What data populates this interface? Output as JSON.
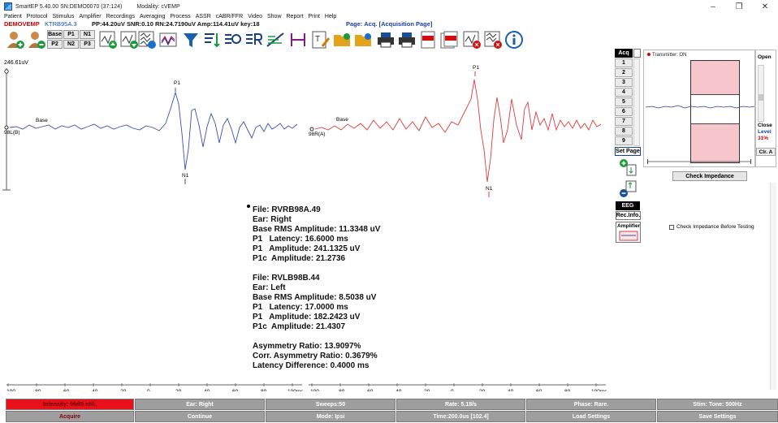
{
  "window": {
    "title": "SmartEP 5.40.00  SN:DEMO0070 (37:124)",
    "modality": "Modality: cVEMP",
    "controls": {
      "minimize": "–",
      "maximize": "❐",
      "close": "✕"
    }
  },
  "menu": [
    "Patient",
    "Protocol",
    "Stimulus",
    "Amplifier",
    "Recordings",
    "Averaging",
    "Process",
    "ASSR",
    "cABR/FFR",
    "Video",
    "Show",
    "Report",
    "Print",
    "Help"
  ],
  "status": {
    "patient_id": "DEMOVEMP",
    "test_id": "KTRB95A.3",
    "acq_stats": "PP:44.20uV SNR:0.10 RN:24.7190uV Amp:114.41uV  key:18",
    "page_label": "Page: Acq. [Acquisition Page]"
  },
  "markers": [
    "Base",
    "P1",
    "N1",
    "P2",
    "N2",
    "P3"
  ],
  "plot": {
    "amplitude_label": "246.61uV",
    "left": {
      "label": "98L(B)",
      "base": "Base",
      "p1": "P1",
      "n1": "N1",
      "color": "#3a4fb0"
    },
    "right": {
      "label": "98R(A)",
      "base": "Base",
      "p1": "P1",
      "n1": "N1",
      "color": "#e03a3a"
    },
    "x_ticks_left": [
      "-100",
      "-80",
      "-60",
      "-40",
      "-20",
      "0",
      "20",
      "40",
      "60",
      "80",
      "100ms"
    ],
    "x_ticks_right": [
      "-100",
      "-80",
      "-60",
      "-40",
      "-20",
      "0",
      "20",
      "40",
      "60",
      "80",
      "100ms"
    ]
  },
  "results": {
    "right": {
      "file": "File: RVRB98A.49",
      "ear": "Ear: Right",
      "base_rms": "Base RMS Amplitude: 11.3348 uV",
      "p1_latency": "P1   Latency: 16.6000 ms",
      "p1_amplitude": "P1   Amplitude: 241.1325 uV",
      "p1c_amplitude": "P1c  Amplitude: 21.2736"
    },
    "left": {
      "file": "File: RVLB98B.44",
      "ear": "Ear: Left",
      "base_rms": "Base RMS Amplitude: 8.5038 uV",
      "p1_latency": "P1   Latency: 17.0000 ms",
      "p1_amplitude": "P1   Amplitude: 182.2423 uV",
      "p1c_amplitude": "P1c  Amplitude: 21.4307"
    },
    "asymmetry": "Asymmetry Ratio: 13.9097%",
    "corr_asymmetry": "Corr. Asymmetry Ratio: 0.3679%",
    "latency_diff": "Latency Difference: 0.4000 ms"
  },
  "side_panel": {
    "acq": "Acq",
    "pages": [
      "1",
      "2",
      "3",
      "4",
      "5",
      "6",
      "7",
      "8",
      "9"
    ],
    "set_page": "Set Page",
    "eeg": "EEG",
    "rec_info": "Rec.Info.",
    "amplifier": "Amplifier"
  },
  "impedance": {
    "transmitter": "Transmitter: ON",
    "open": "Open",
    "close": "Close",
    "level_label": "Level",
    "level_value": "31%",
    "clr": "Clr. A",
    "check_button": "Check Impedance",
    "check_before": "Check Impedance Before Testing"
  },
  "bottom_bar": {
    "row1": [
      "Intensity: 96dB nHL",
      "Ear: Right",
      "Sweeps:50",
      "Rate: 5.18/s",
      "Phase: Rare.",
      "Stim: Tone: 500Hz"
    ],
    "row2": [
      "Acquire",
      "Continue",
      "Mode: Ipsi",
      "Time:200.0us [102.4]",
      "Load Settings",
      "Save Settings"
    ]
  },
  "colors": {
    "left_trace": "#3a4fb0",
    "right_trace": "#e03a3a",
    "intensity_active": "#e8101a",
    "button_gray": "#9e9e9e"
  }
}
